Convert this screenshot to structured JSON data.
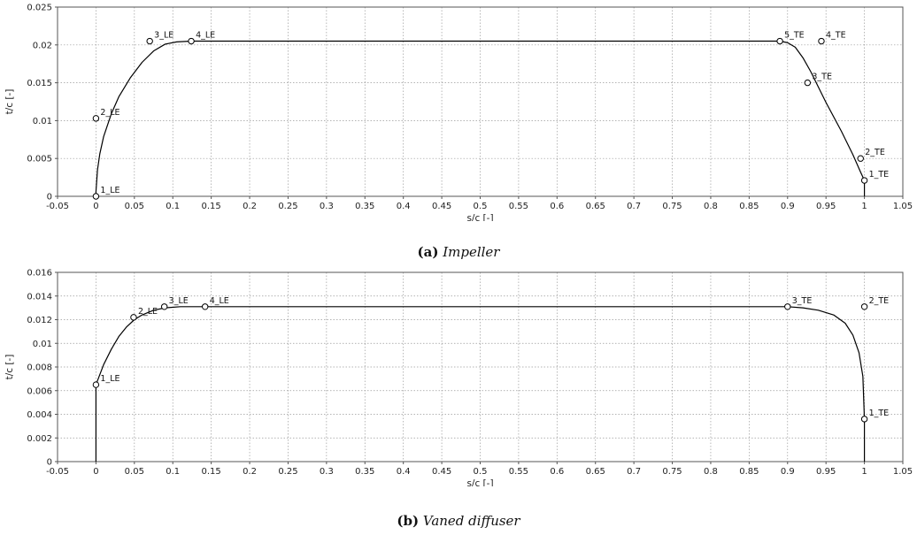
{
  "chart_data": [
    {
      "type": "line",
      "caption_tag": "(a)",
      "caption_name": "Impeller",
      "xlabel": "s/c [-]",
      "ylabel": "t/c [-]",
      "xlim": [
        -0.05,
        1.05
      ],
      "ylim": [
        0,
        0.025
      ],
      "xticks": [
        "-0.05",
        "0",
        "0.05",
        "0.1",
        "0.15",
        "0.2",
        "0.25",
        "0.3",
        "0.35",
        "0.4",
        "0.45",
        "0.5",
        "0.55",
        "0.6",
        "0.65",
        "0.7",
        "0.75",
        "0.8",
        "0.85",
        "0.9",
        "0.95",
        "1",
        "1.05"
      ],
      "yticks": [
        "0",
        "0.005",
        "0.01",
        "0.015",
        "0.02",
        "0.025"
      ],
      "grid": true,
      "control_points": [
        {
          "label": "1_LE",
          "x": 0.0,
          "y": 0.0
        },
        {
          "label": "2_LE",
          "x": 0.0,
          "y": 0.0103
        },
        {
          "label": "3_LE",
          "x": 0.07,
          "y": 0.0205
        },
        {
          "label": "4_LE",
          "x": 0.124,
          "y": 0.0205
        },
        {
          "label": "5_TE",
          "x": 0.89,
          "y": 0.0205
        },
        {
          "label": "4_TE",
          "x": 0.944,
          "y": 0.0205
        },
        {
          "label": "3_TE",
          "x": 0.926,
          "y": 0.015
        },
        {
          "label": "2_TE",
          "x": 0.995,
          "y": 0.005
        },
        {
          "label": "1_TE",
          "x": 1.0,
          "y": 0.0021
        }
      ],
      "curve": {
        "x": [
          0.0,
          0.0,
          0.002,
          0.005,
          0.01,
          0.02,
          0.03,
          0.045,
          0.06,
          0.075,
          0.09,
          0.105,
          0.124,
          0.89,
          0.9,
          0.91,
          0.92,
          0.93,
          0.95,
          0.97,
          0.985,
          0.995,
          1.0,
          1.0
        ],
        "y": [
          0.0,
          0.0006,
          0.0035,
          0.0056,
          0.0079,
          0.0109,
          0.0132,
          0.0157,
          0.0177,
          0.0192,
          0.0201,
          0.0204,
          0.0205,
          0.0205,
          0.0203,
          0.0197,
          0.0183,
          0.0165,
          0.0124,
          0.0086,
          0.0055,
          0.0032,
          0.0021,
          0.0
        ]
      }
    },
    {
      "type": "line",
      "caption_tag": "(b)",
      "caption_name": "Vaned diffuser",
      "xlabel": "s/c [-]",
      "ylabel": "t/c [-]",
      "xlim": [
        -0.05,
        1.05
      ],
      "ylim": [
        0,
        0.016
      ],
      "xticks": [
        "-0.05",
        "0",
        "0.05",
        "0.1",
        "0.15",
        "0.2",
        "0.25",
        "0.3",
        "0.35",
        "0.4",
        "0.45",
        "0.5",
        "0.55",
        "0.6",
        "0.65",
        "0.7",
        "0.75",
        "0.8",
        "0.85",
        "0.9",
        "0.95",
        "1",
        "1.05"
      ],
      "yticks": [
        "0",
        "0.002",
        "0.004",
        "0.006",
        "0.008",
        "0.01",
        "0.012",
        "0.014",
        "0.016"
      ],
      "grid": true,
      "control_points": [
        {
          "label": "1_LE",
          "x": 0.0,
          "y": 0.0065
        },
        {
          "label": "2_LE",
          "x": 0.049,
          "y": 0.0122
        },
        {
          "label": "3_LE",
          "x": 0.089,
          "y": 0.0131
        },
        {
          "label": "4_LE",
          "x": 0.142,
          "y": 0.0131
        },
        {
          "label": "3_TE",
          "x": 0.9,
          "y": 0.0131
        },
        {
          "label": "2_TE",
          "x": 1.0,
          "y": 0.0131
        },
        {
          "label": "1_TE",
          "x": 1.0,
          "y": 0.0036
        }
      ],
      "curve": {
        "x": [
          0.0,
          0.0,
          0.01,
          0.02,
          0.03,
          0.04,
          0.05,
          0.06,
          0.075,
          0.09,
          0.11,
          0.142,
          0.9,
          0.92,
          0.94,
          0.96,
          0.975,
          0.985,
          0.993,
          0.998,
          1.0,
          1.0
        ],
        "y": [
          0.0,
          0.0065,
          0.0082,
          0.0095,
          0.0106,
          0.0114,
          0.012,
          0.0124,
          0.0128,
          0.013,
          0.0131,
          0.0131,
          0.0131,
          0.013,
          0.0128,
          0.0124,
          0.0117,
          0.0107,
          0.0092,
          0.0072,
          0.0036,
          0.0
        ]
      }
    }
  ]
}
